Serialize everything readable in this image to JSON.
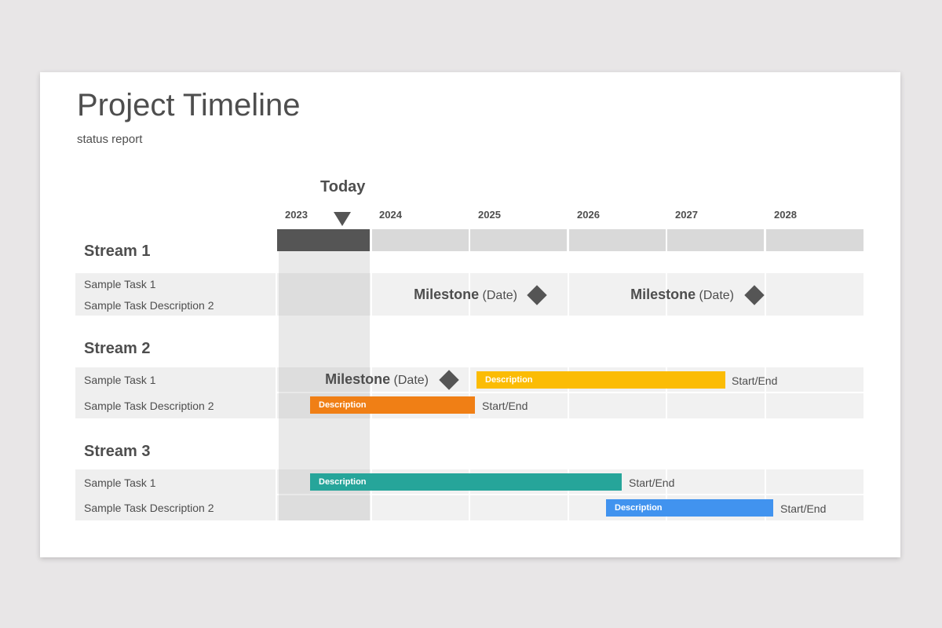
{
  "header": {
    "title": "Project Timeline",
    "subtitle": "status report"
  },
  "today": {
    "label": "Today",
    "year": "2023"
  },
  "years": [
    "2023",
    "2024",
    "2025",
    "2026",
    "2027",
    "2028"
  ],
  "colors": {
    "current_year": "#555555",
    "yellow": "#fbbc05",
    "orange": "#f07f15",
    "teal": "#26a59a",
    "blue": "#4193ef"
  },
  "streams": [
    {
      "title": "Stream 1",
      "tasks": [
        {
          "label": "Sample Task 1",
          "milestones": [
            {
              "name": "Milestone",
              "date": "(Date)"
            },
            {
              "name": "Milestone",
              "date": "(Date)"
            }
          ]
        },
        {
          "label": "Sample Task Description 2"
        }
      ]
    },
    {
      "title": "Stream 2",
      "tasks": [
        {
          "label": "Sample Task 1",
          "milestones": [
            {
              "name": "Milestone",
              "date": "(Date)"
            }
          ],
          "bar": {
            "text": "Description",
            "end_label": "Start/End",
            "color": "#fbbc05"
          }
        },
        {
          "label": "Sample Task Description 2",
          "bar": {
            "text": "Description",
            "end_label": "Start/End",
            "color": "#f07f15"
          }
        }
      ]
    },
    {
      "title": "Stream 3",
      "tasks": [
        {
          "label": "Sample Task 1",
          "bar": {
            "text": "Description",
            "end_label": "Start/End",
            "color": "#26a59a"
          }
        },
        {
          "label": "Sample Task Description 2",
          "bar": {
            "text": "Description",
            "end_label": "Start/End",
            "color": "#4193ef"
          }
        }
      ]
    }
  ]
}
